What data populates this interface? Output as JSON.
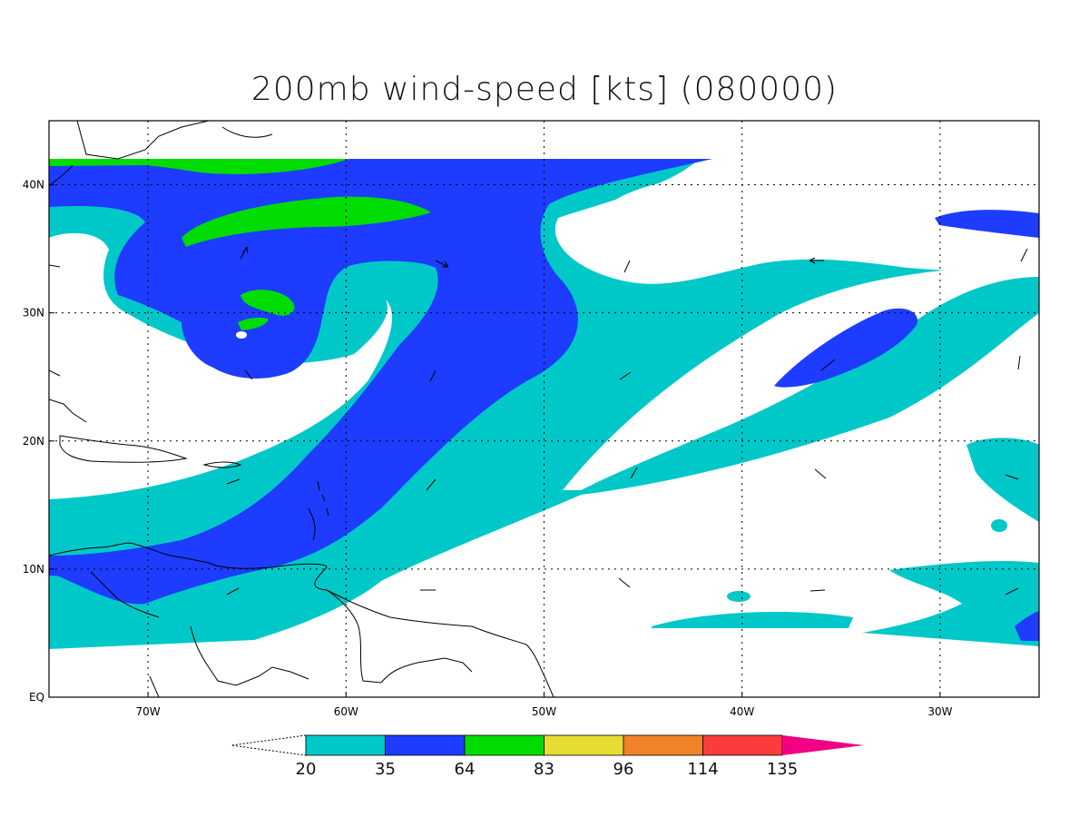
{
  "title": "200mb wind-speed [kts] (080000)",
  "map": {
    "lon_range": [
      -75,
      -25
    ],
    "lat_range": [
      0,
      45
    ],
    "x_ticks": [
      {
        "lon": -70,
        "label": "70W"
      },
      {
        "lon": -60,
        "label": "60W"
      },
      {
        "lon": -50,
        "label": "50W"
      },
      {
        "lon": -40,
        "label": "40W"
      },
      {
        "lon": -30,
        "label": "30W"
      }
    ],
    "y_ticks": [
      {
        "lat": 0,
        "label": "EQ"
      },
      {
        "lat": 10,
        "label": "10N"
      },
      {
        "lat": 20,
        "label": "20N"
      },
      {
        "lat": 30,
        "label": "30N"
      },
      {
        "lat": 40,
        "label": "40N"
      }
    ],
    "data_lat_top": 42,
    "data_lat_bottom": 4
  },
  "colorbar": {
    "levels": [
      "20",
      "35",
      "64",
      "83",
      "96",
      "114",
      "135"
    ],
    "colors": [
      "#00c8c8",
      "#1e3cff",
      "#00dc00",
      "#e6dc32",
      "#f08228",
      "#fa3c3c",
      "#f00082"
    ]
  }
}
